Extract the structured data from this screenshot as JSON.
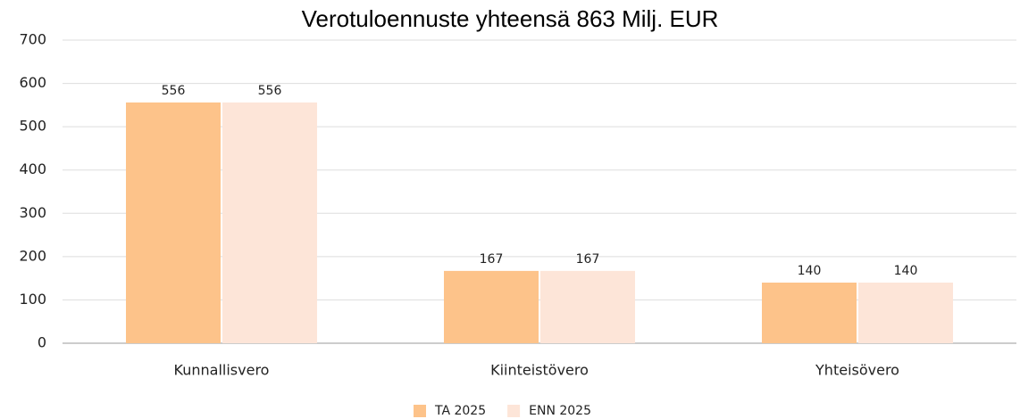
{
  "chart_data": {
    "type": "bar",
    "title": "Verotuloennuste yhteensä 863 Milj. EUR",
    "categories": [
      "Kunnallisvero",
      "Kiinteistövero",
      "Yhteisövero"
    ],
    "series": [
      {
        "name": "TA 2025",
        "color": "#fdc38a",
        "values": [
          556,
          167,
          140
        ]
      },
      {
        "name": "ENN 2025",
        "color": "#fde5d8",
        "values": [
          556,
          167,
          140
        ]
      }
    ],
    "ylim": [
      0,
      700
    ],
    "yticks": [
      0,
      100,
      200,
      300,
      400,
      500,
      600,
      700
    ],
    "grid": true,
    "legend": "bottom"
  }
}
